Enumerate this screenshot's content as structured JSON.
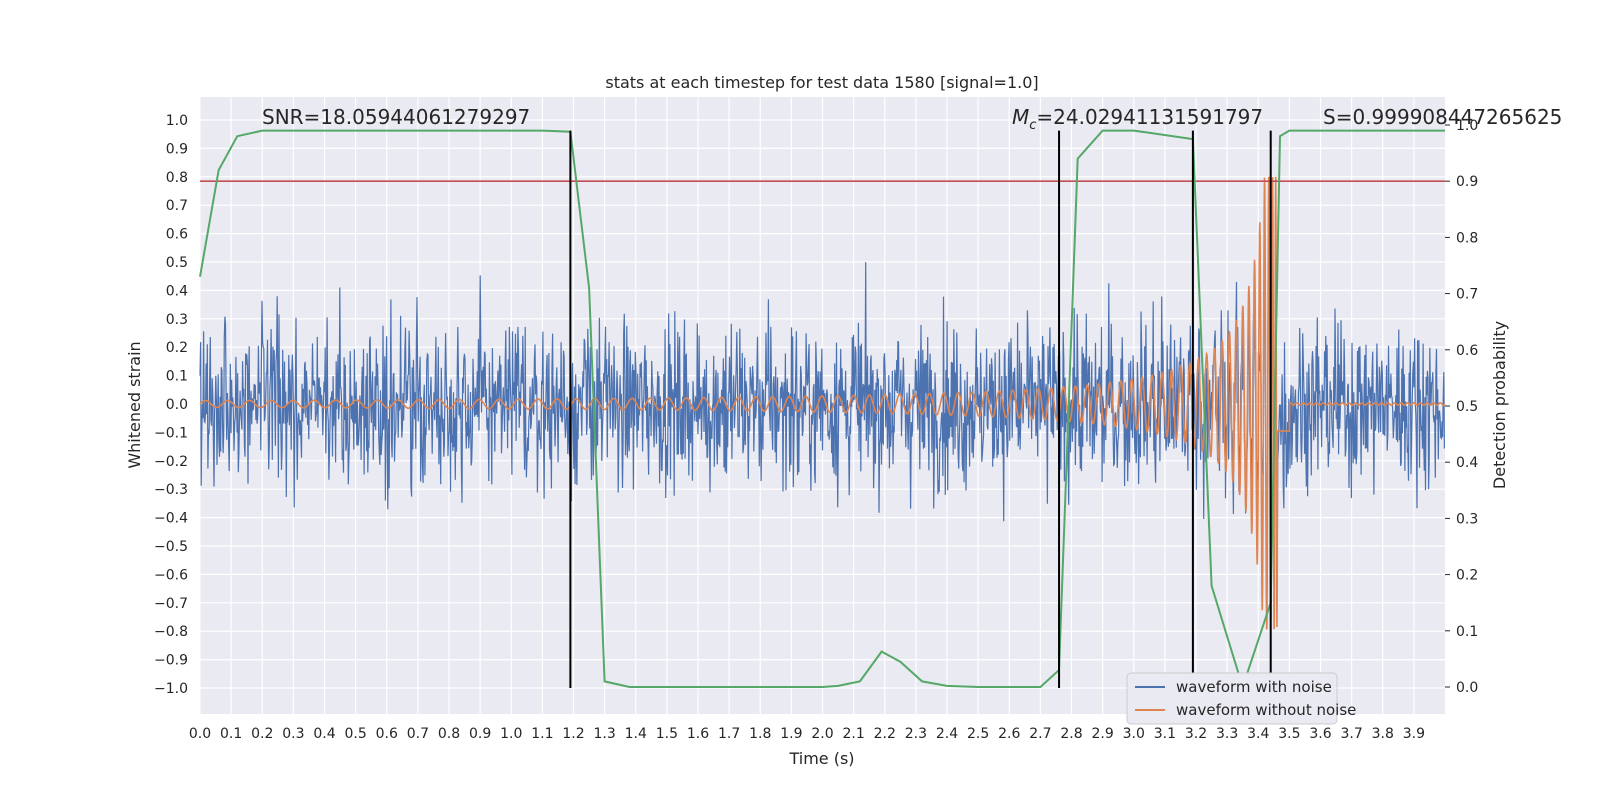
{
  "chart_data": {
    "type": "line",
    "title": "stats at each timestep for test data 1580 [signal=1.0]",
    "xlabel": "Time (s)",
    "ylabel": "Whitened strain",
    "y2label": "Detection probability",
    "xlim": [
      0.0,
      4.0
    ],
    "ylim": [
      -1.1,
      1.1
    ],
    "y2lim": [
      -0.05,
      1.0
    ],
    "x_ticks": [
      0.0,
      0.1,
      0.2,
      0.3,
      0.4,
      0.5,
      0.6,
      0.7,
      0.8,
      0.9,
      1.0,
      1.1,
      1.2,
      1.3,
      1.4,
      1.5,
      1.6,
      1.7,
      1.8,
      1.9,
      2.0,
      2.1,
      2.2,
      2.3,
      2.4,
      2.5,
      2.6,
      2.7,
      2.8,
      2.9,
      3.0,
      3.1,
      3.2,
      3.3,
      3.4,
      3.5,
      3.6,
      3.7,
      3.8,
      3.9
    ],
    "y_ticks": [
      1.0,
      0.9,
      0.8,
      0.7,
      0.6,
      0.5,
      0.4,
      0.3,
      0.2,
      0.1,
      0.0,
      -0.1,
      -0.2,
      -0.3,
      -0.4,
      -0.5,
      -0.6,
      -0.7,
      -0.8,
      -0.9,
      -1.0
    ],
    "y2_ticks": [
      1.0,
      0.9,
      0.8,
      0.7,
      0.6,
      0.5,
      0.4,
      0.3,
      0.2,
      0.1,
      0.0
    ],
    "grid": true,
    "legend_position": "bottom-right",
    "annotations": {
      "snr": "SNR=18.05944061279297",
      "mc_prefix": "M",
      "mc_sub": "c",
      "mc_value": "=24.02941131591797",
      "s": "S=0.999908447265625"
    },
    "threshold_y2": 0.9,
    "vertical_lines_x": [
      1.19,
      2.76,
      3.19,
      3.44
    ],
    "series": [
      {
        "name": "waveform with noise",
        "color": "#4c72b0",
        "description_values": "noise, approx amplitude 0.2 std, range -0.87 to 0.98"
      },
      {
        "name": "waveform without noise",
        "color": "#dd8452",
        "chirp": {
          "start_amplitude": 0.012,
          "merger_time": 3.47,
          "peak_amplitude": 0.8,
          "start_freq_hz": 14
        }
      },
      {
        "name": "detection probability",
        "color": "#55a868",
        "axis": "y2",
        "x": [
          0.0,
          0.06,
          0.12,
          0.2,
          0.3,
          0.5,
          0.8,
          1.0,
          1.1,
          1.19,
          1.25,
          1.3,
          1.38,
          1.5,
          1.8,
          2.0,
          2.05,
          2.12,
          2.19,
          2.25,
          2.32,
          2.4,
          2.5,
          2.7,
          2.76,
          2.82,
          2.9,
          3.0,
          3.19,
          3.25,
          3.35,
          3.44,
          3.47,
          3.5,
          3.6,
          4.0
        ],
        "y": [
          0.73,
          0.92,
          0.98,
          0.99,
          0.99,
          0.99,
          0.99,
          0.99,
          0.99,
          0.988,
          0.71,
          0.01,
          0.0,
          0.0,
          0.0,
          0.0,
          0.002,
          0.01,
          0.063,
          0.045,
          0.01,
          0.002,
          0.0,
          0.0,
          0.03,
          0.94,
          0.99,
          0.99,
          0.975,
          0.18,
          0.0,
          0.15,
          0.98,
          0.99,
          0.99,
          0.99
        ]
      }
    ]
  },
  "legend": {
    "with_noise": "waveform with noise",
    "without_noise": "waveform without noise"
  },
  "colors": {
    "background": "#eaeaf2",
    "grid": "#ffffff",
    "noise": "#4c72b0",
    "clean": "#dd8452",
    "prob": "#55a868",
    "threshold": "#c44e52",
    "vlines": "#000000"
  }
}
